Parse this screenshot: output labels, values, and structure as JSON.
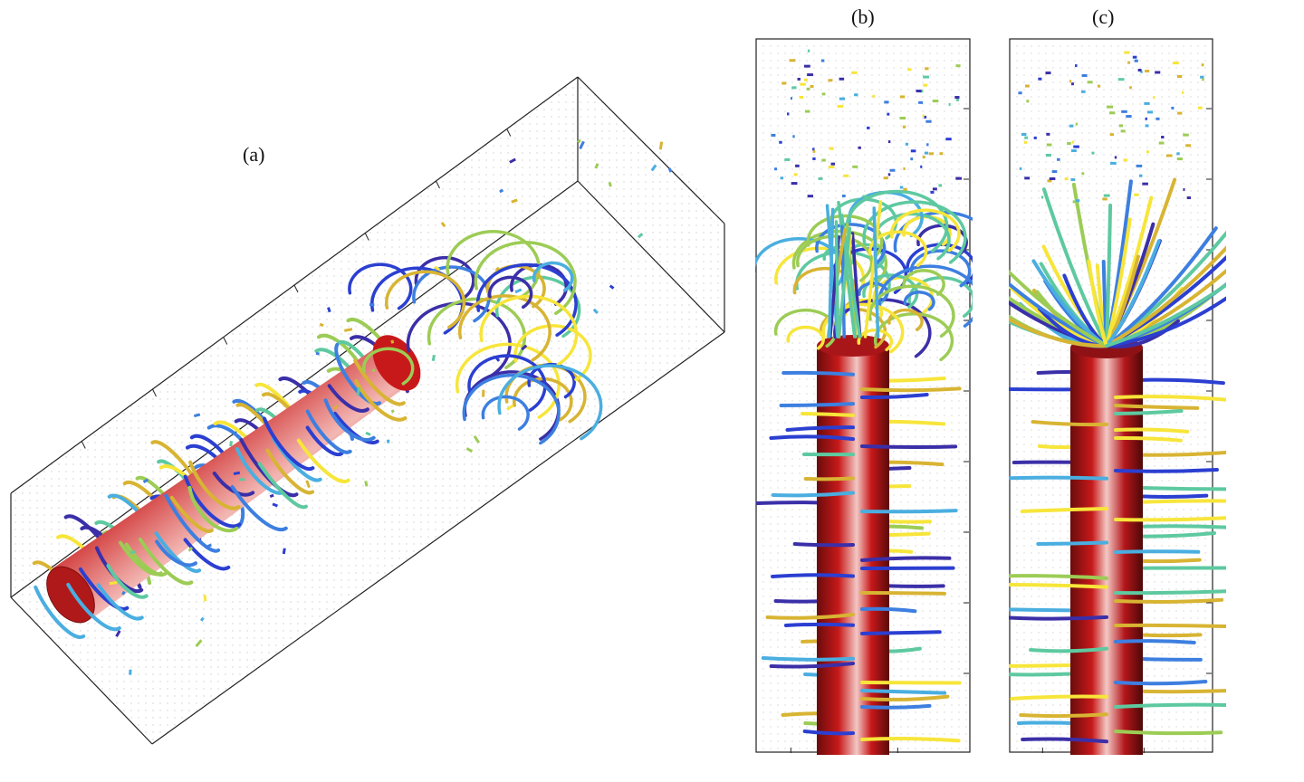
{
  "panels": {
    "a": {
      "label": "(a)"
    },
    "b": {
      "label": "(b)"
    },
    "c": {
      "label": "(c)"
    }
  },
  "colors": {
    "cylinder_dark": "#7a0f0f",
    "cylinder_mid": "#c8191a",
    "cylinder_light": "#f3b8b4",
    "frame": "#222222",
    "grid_dots": "#cfcfcf",
    "stream_palette": [
      "#2b3fd1",
      "#3d7fe0",
      "#4aaee0",
      "#5ec9a0",
      "#9ccc55",
      "#d8b433",
      "#f7e53a",
      "#3b2fa8"
    ]
  }
}
